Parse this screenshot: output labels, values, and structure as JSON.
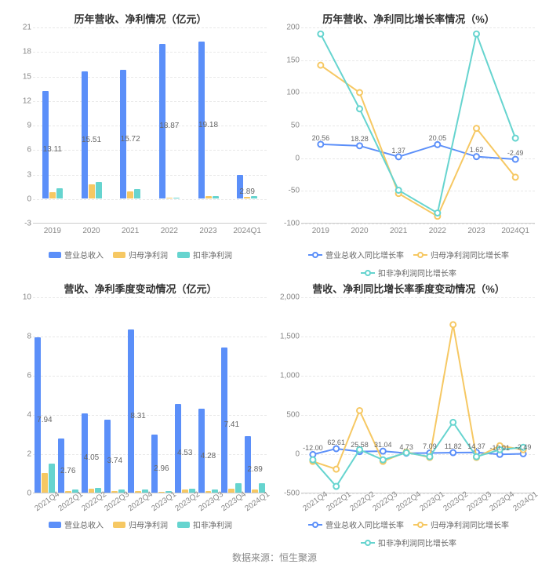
{
  "colors": {
    "series1": "#5b8ff9",
    "series2": "#f6c863",
    "series3": "#66d4cf",
    "grid": "#e8e8e8",
    "axis": "#cccccc",
    "text": "#666666",
    "background": "#ffffff"
  },
  "source": "数据来源：恒生聚源",
  "chart1": {
    "type": "bar",
    "title": "历年营收、净利情况（亿元）",
    "categories": [
      "2019",
      "2020",
      "2021",
      "2022",
      "2023",
      "2024Q1"
    ],
    "y": {
      "min": -3,
      "max": 21,
      "step": 3
    },
    "series": [
      {
        "name": "营业总收入",
        "color": "#5b8ff9",
        "values": [
          13.11,
          15.51,
          15.72,
          18.87,
          19.18,
          2.89
        ]
      },
      {
        "name": "归母净利润",
        "color": "#f6c863",
        "values": [
          0.7,
          1.7,
          0.8,
          0.1,
          0.25,
          0.2
        ]
      },
      {
        "name": "扣非净利润",
        "color": "#66d4cf",
        "values": [
          1.2,
          2.0,
          1.1,
          0.05,
          0.3,
          0.3
        ]
      }
    ],
    "value_labels": [
      13.11,
      15.51,
      15.72,
      18.87,
      19.18,
      2.89
    ]
  },
  "chart2": {
    "type": "line",
    "title": "历年营收、净利同比增长率情况（%）",
    "categories": [
      "2019",
      "2020",
      "2021",
      "2022",
      "2023",
      "2024Q1"
    ],
    "y": {
      "min": -100,
      "max": 200,
      "step": 50
    },
    "series": [
      {
        "name": "营业总收入同比增长率",
        "color": "#5b8ff9",
        "values": [
          20.56,
          18.28,
          1.37,
          20.05,
          1.62,
          -2.49
        ],
        "labels": [
          "20.56",
          "18.28",
          "1.37",
          "20.05",
          "1.62",
          "-2.49"
        ]
      },
      {
        "name": "归母净利润同比增长率",
        "color": "#f6c863",
        "values": [
          142,
          100,
          -55,
          -90,
          45,
          -30
        ]
      },
      {
        "name": "扣非净利润同比增长率",
        "color": "#66d4cf",
        "values": [
          190,
          75,
          -50,
          -85,
          190,
          30
        ]
      }
    ]
  },
  "chart3": {
    "type": "bar",
    "title": "营收、净利季度变动情况（亿元）",
    "categories": [
      "2021Q4",
      "2022Q1",
      "2022Q2",
      "2022Q3",
      "2022Q4",
      "2023Q1",
      "2023Q2",
      "2023Q3",
      "2023Q4",
      "2024Q1"
    ],
    "y": {
      "min": 0,
      "max": 10,
      "step": 2
    },
    "x_rotate": true,
    "series": [
      {
        "name": "营业总收入",
        "color": "#5b8ff9",
        "values": [
          7.94,
          2.76,
          4.05,
          3.74,
          8.31,
          2.96,
          4.53,
          4.28,
          7.41,
          2.89
        ]
      },
      {
        "name": "归母净利润",
        "color": "#f6c863",
        "values": [
          1.0,
          0.1,
          0.2,
          0.1,
          0.1,
          0.05,
          0.15,
          0.1,
          0.2,
          0.15
        ]
      },
      {
        "name": "扣非净利润",
        "color": "#66d4cf",
        "values": [
          1.5,
          0.15,
          0.25,
          0.15,
          0.15,
          0.1,
          0.2,
          0.15,
          0.5,
          0.5
        ]
      }
    ],
    "value_labels": [
      7.94,
      2.76,
      4.05,
      3.74,
      8.31,
      2.96,
      4.53,
      4.28,
      7.41,
      2.89
    ]
  },
  "chart4": {
    "type": "line",
    "title": "营收、净利同比增长率季度变动情况（%）",
    "categories": [
      "2021Q4",
      "2022Q1",
      "2022Q2",
      "2022Q3",
      "2022Q4",
      "2023Q1",
      "2023Q2",
      "2023Q3",
      "2023Q4",
      "2024Q1"
    ],
    "y": {
      "min": -500,
      "max": 2000,
      "step": 500
    },
    "x_rotate": true,
    "series": [
      {
        "name": "营业总收入同比增长率",
        "color": "#5b8ff9",
        "values": [
          -12.0,
          62.61,
          25.58,
          31.04,
          4.73,
          7.09,
          11.82,
          14.37,
          -10.91,
          -2.49
        ],
        "labels": [
          "-12.00",
          "62.61",
          "25.58",
          "31.04",
          "4.73",
          "7.09",
          "11.82",
          "14.37",
          "-10.91",
          "-2.49"
        ]
      },
      {
        "name": "归母净利润同比增长率",
        "color": "#f6c863",
        "values": [
          -100,
          -200,
          550,
          -100,
          20,
          -50,
          1650,
          -50,
          100,
          50
        ]
      },
      {
        "name": "扣非净利润同比增长率",
        "color": "#66d4cf",
        "values": [
          -80,
          -420,
          50,
          -80,
          10,
          -40,
          400,
          -40,
          50,
          80
        ]
      }
    ]
  }
}
